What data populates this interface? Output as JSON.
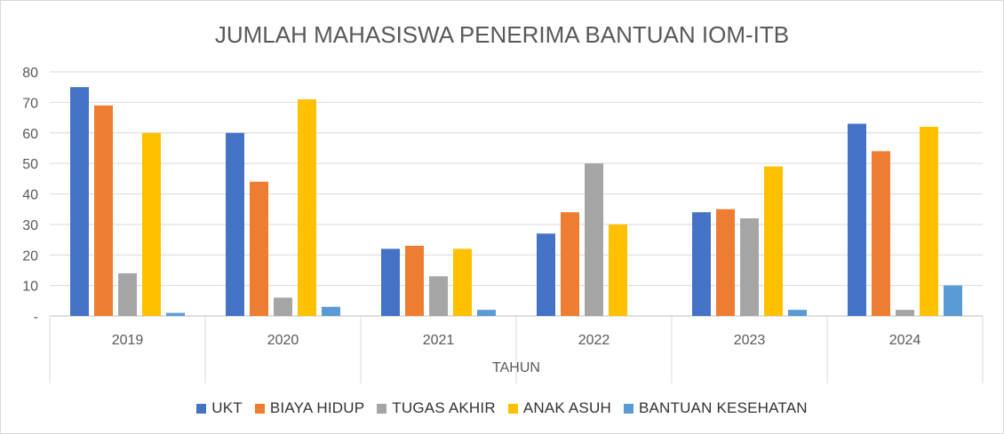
{
  "chart_data": {
    "type": "bar",
    "title": "JUMLAH MAHASISWA PENERIMA BANTUAN IOM-ITB",
    "xlabel": "TAHUN",
    "ylabel": "",
    "ylim": [
      0,
      80
    ],
    "yticks": [
      "-",
      "10",
      "20",
      "30",
      "40",
      "50",
      "60",
      "70",
      "80"
    ],
    "grid": true,
    "legend_position": "bottom",
    "categories": [
      "2019",
      "2020",
      "2021",
      "2022",
      "2023",
      "2024"
    ],
    "series": [
      {
        "name": "UKT",
        "color": "#4472c4",
        "values": [
          75,
          60,
          22,
          27,
          34,
          63
        ]
      },
      {
        "name": "BIAYA HIDUP",
        "color": "#ed7d31",
        "values": [
          69,
          44,
          23,
          34,
          35,
          54
        ]
      },
      {
        "name": "TUGAS AKHIR",
        "color": "#a5a5a5",
        "values": [
          14,
          6,
          13,
          50,
          32,
          2
        ]
      },
      {
        "name": "ANAK ASUH",
        "color": "#ffc000",
        "values": [
          60,
          71,
          22,
          30,
          49,
          62
        ]
      },
      {
        "name": "BANTUAN KESEHATAN",
        "color": "#5b9bd5",
        "values": [
          1,
          3,
          2,
          0,
          2,
          10
        ]
      }
    ]
  }
}
